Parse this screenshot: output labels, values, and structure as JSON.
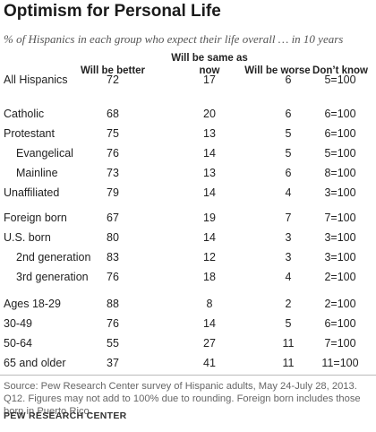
{
  "title": "Optimism for Personal Life",
  "subtitle": "% of Hispanics in each group who expect their life overall … in 10 years",
  "columns": [
    "Will be better",
    "Will be same as now",
    "Will be worse",
    "Don’t know"
  ],
  "rows": [
    {
      "label": "All Hispanics",
      "indent": false,
      "values": [
        "72",
        "17",
        "6",
        "5=100"
      ]
    },
    {
      "label": "Catholic",
      "indent": false,
      "values": [
        "68",
        "20",
        "6",
        "6=100"
      ]
    },
    {
      "label": "Protestant",
      "indent": false,
      "values": [
        "75",
        "13",
        "5",
        "6=100"
      ]
    },
    {
      "label": "Evangelical",
      "indent": true,
      "values": [
        "76",
        "14",
        "5",
        "5=100"
      ]
    },
    {
      "label": "Mainline",
      "indent": true,
      "values": [
        "73",
        "13",
        "6",
        "8=100"
      ]
    },
    {
      "label": "Unaffiliated",
      "indent": false,
      "values": [
        "79",
        "14",
        "4",
        "3=100"
      ]
    },
    {
      "label": "Foreign born",
      "indent": false,
      "values": [
        "67",
        "19",
        "7",
        "7=100"
      ]
    },
    {
      "label": "U.S. born",
      "indent": false,
      "values": [
        "80",
        "14",
        "3",
        "3=100"
      ]
    },
    {
      "label": "2nd generation",
      "indent": true,
      "values": [
        "83",
        "12",
        "3",
        "3=100"
      ]
    },
    {
      "label": "3rd generation",
      "indent": true,
      "values": [
        "76",
        "18",
        "4",
        "2=100"
      ]
    },
    {
      "label": "Ages 18-29",
      "indent": false,
      "values": [
        "88",
        "8",
        "2",
        "2=100"
      ]
    },
    {
      "label": "30-49",
      "indent": false,
      "values": [
        "76",
        "14",
        "5",
        "6=100"
      ]
    },
    {
      "label": "50-64",
      "indent": false,
      "values": [
        "55",
        "27",
        "11",
        "7=100"
      ]
    },
    {
      "label": "65 and older",
      "indent": false,
      "values": [
        "37",
        "41",
        "11",
        "11=100"
      ]
    }
  ],
  "note": "Source: Pew Research Center survey of Hispanic adults, May 24-July 28, 2013. Q12. Figures may not add to 100% due to rounding. Foreign born includes those born in Puerto Rico.",
  "source": "PEW RESEARCH CENTER"
}
